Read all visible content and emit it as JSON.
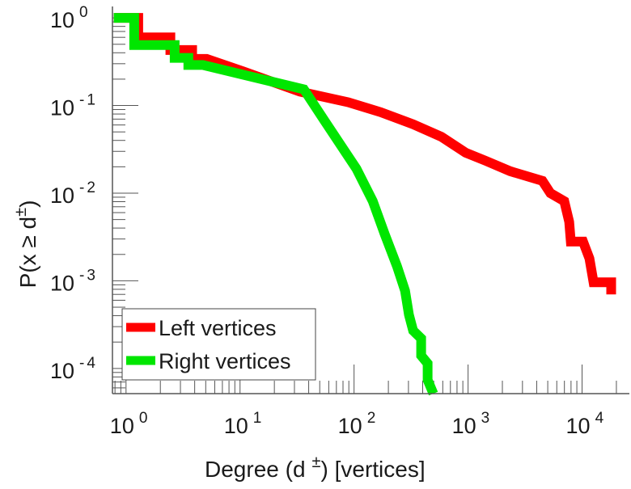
{
  "chart_data": {
    "type": "line",
    "scale": {
      "x": "log",
      "y": "log"
    },
    "xlabel": {
      "main": "Degree (d",
      "sup": "±",
      "tail": ") [vertices]"
    },
    "ylabel": {
      "main": "P(x ≥ d",
      "sup": "±",
      "tail": ")"
    },
    "xlim": [
      0.76,
      26000
    ],
    "ylim": [
      5.16e-05,
      1.35
    ],
    "grid": false,
    "x_ticks": [
      {
        "base": "10",
        "exp": "0",
        "value": 1
      },
      {
        "base": "10",
        "exp": "1",
        "value": 10
      },
      {
        "base": "10",
        "exp": "2",
        "value": 100
      },
      {
        "base": "10",
        "exp": "3",
        "value": 1000
      },
      {
        "base": "10",
        "exp": "4",
        "value": 10000
      }
    ],
    "y_ticks": [
      {
        "base": "10",
        "exp": "0",
        "value": 1
      },
      {
        "base": "10",
        "exp": "-1",
        "value": 0.1
      },
      {
        "base": "10",
        "exp": "-2",
        "value": 0.01
      },
      {
        "base": "10",
        "exp": "-3",
        "value": 0.001
      },
      {
        "base": "10",
        "exp": "-4",
        "value": 0.0001
      }
    ],
    "legend": {
      "placement": "bottom-left"
    },
    "series": [
      {
        "name": "Left vertices",
        "color": "#ff0000",
        "points": [
          [
            0.78,
            1
          ],
          [
            1.28,
            1
          ],
          [
            1.28,
            0.6
          ],
          [
            2.45,
            0.6
          ],
          [
            2.45,
            0.43
          ],
          [
            3.8,
            0.43
          ],
          [
            3.8,
            0.34
          ],
          [
            5.1,
            0.34
          ],
          [
            10.7,
            0.245
          ],
          [
            33.5,
            0.144
          ],
          [
            89,
            0.109
          ],
          [
            171,
            0.084
          ],
          [
            330,
            0.061
          ],
          [
            583,
            0.044
          ],
          [
            953,
            0.029
          ],
          [
            1430,
            0.0234
          ],
          [
            2340,
            0.0178
          ],
          [
            4490,
            0.0138
          ],
          [
            5280,
            0.01
          ],
          [
            6980,
            0.0081
          ],
          [
            7710,
            0.0047
          ],
          [
            7960,
            0.0028
          ],
          [
            10200,
            0.0028
          ],
          [
            11600,
            0.0018
          ],
          [
            12600,
            0.00096
          ],
          [
            18000,
            0.00096
          ],
          [
            18000,
            0.0007
          ]
        ]
      },
      {
        "name": "Right vertices",
        "color": "#00e600",
        "points": [
          [
            0.78,
            1
          ],
          [
            1.18,
            1
          ],
          [
            1.18,
            0.49
          ],
          [
            2.67,
            0.49
          ],
          [
            2.67,
            0.35
          ],
          [
            3.52,
            0.35
          ],
          [
            3.52,
            0.29
          ],
          [
            4.72,
            0.29
          ],
          [
            36.3,
            0.153
          ],
          [
            54.7,
            0.068
          ],
          [
            75.7,
            0.036
          ],
          [
            105,
            0.019
          ],
          [
            146,
            0.0081
          ],
          [
            186,
            0.0034
          ],
          [
            238,
            0.00147
          ],
          [
            280,
            0.00077
          ],
          [
            303,
            0.00041
          ],
          [
            330,
            0.00027
          ],
          [
            388,
            0.00022
          ],
          [
            388,
            0.00014
          ],
          [
            442,
            0.000114
          ],
          [
            442,
            7.4e-05
          ],
          [
            496,
            5.16e-05
          ]
        ]
      }
    ]
  }
}
